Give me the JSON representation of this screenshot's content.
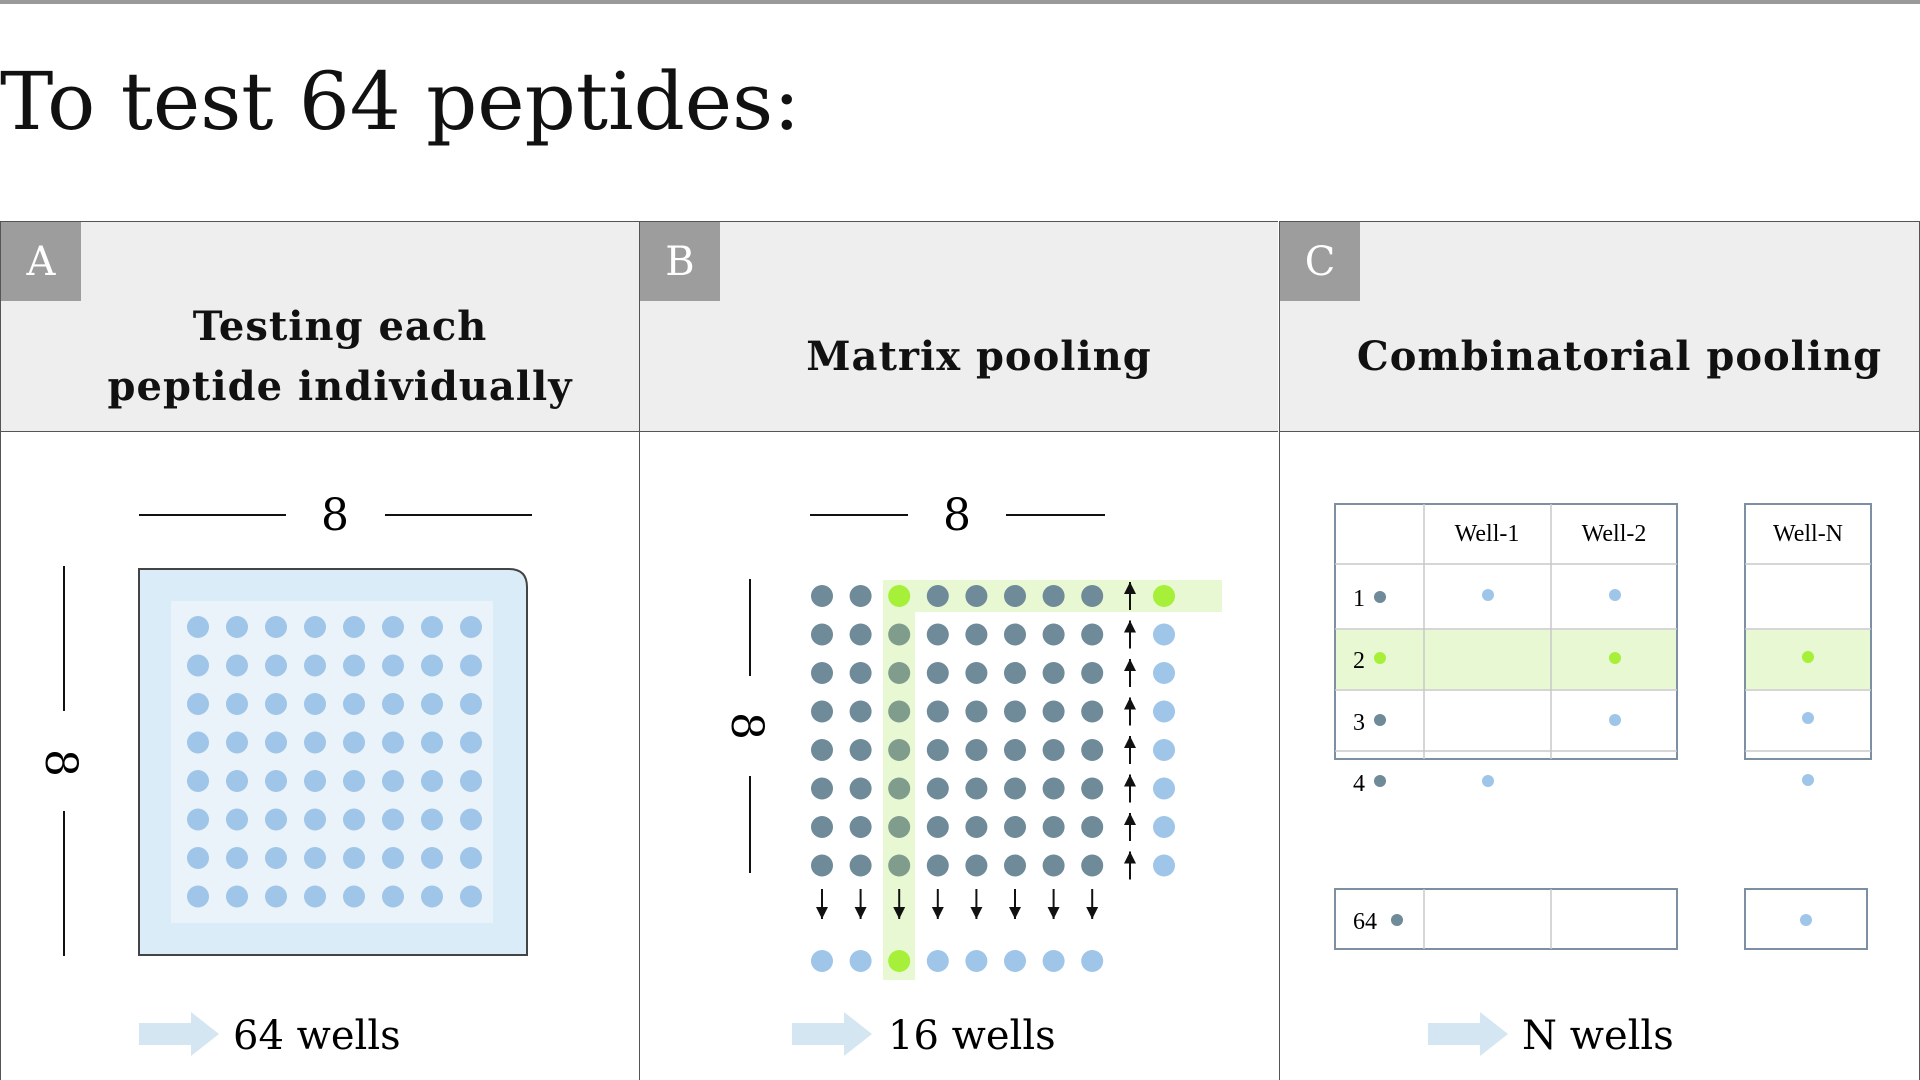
{
  "title": "To test 64 peptides:",
  "panels": [
    {
      "letter": "A",
      "title_lines": [
        "Testing each",
        "peptide individually"
      ],
      "cols_label": "8",
      "rows_label": "8",
      "result": "64 wells"
    },
    {
      "letter": "B",
      "title_lines": [
        "Matrix pooling"
      ],
      "cols_label": "8",
      "rows_label": "8",
      "result": "16 wells"
    },
    {
      "letter": "C",
      "title_lines": [
        "Combinatorial pooling"
      ],
      "result": "N wells",
      "table": {
        "columns": [
          "Well-1",
          "Well-2",
          "Well-N"
        ],
        "rows": [
          "1",
          "2",
          "3",
          "4",
          "64"
        ]
      }
    }
  ],
  "colors": {
    "header_bg": "#eeeeee",
    "letter_bg": "#9d9d9d",
    "well_blue": "#9fc5e8",
    "well_grey": "#6f8a99",
    "highlight_green": "#a6f03a",
    "highlight_band": "#e8f8d2",
    "plate_fill": "#d9ecf7",
    "arrow_blue": "#d4e6f1"
  }
}
